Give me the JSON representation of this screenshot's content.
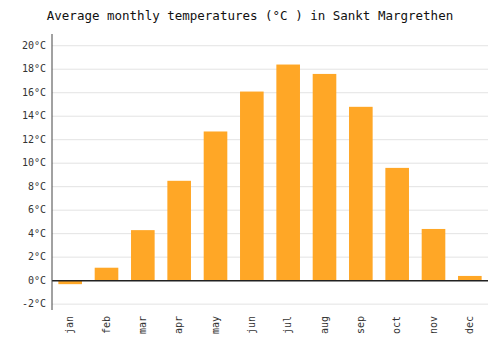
{
  "chart_data": {
    "type": "bar",
    "title": "Average monthly temperatures (°C ) in Sankt Margrethen",
    "categories": [
      "jan",
      "feb",
      "mar",
      "apr",
      "may",
      "jun",
      "jul",
      "aug",
      "sep",
      "oct",
      "nov",
      "dec"
    ],
    "values": [
      -0.3,
      1.1,
      4.3,
      8.5,
      12.7,
      16.1,
      18.4,
      17.6,
      14.8,
      9.6,
      4.4,
      0.4
    ],
    "color": "#FFA726",
    "ylim": [
      -2.5,
      21.0
    ],
    "yticks": [
      {
        "value": -2,
        "label": "-2°C"
      },
      {
        "value": 0,
        "label": "0°C"
      },
      {
        "value": 2,
        "label": "2°C"
      },
      {
        "value": 4,
        "label": "4°C"
      },
      {
        "value": 6,
        "label": "6°C"
      },
      {
        "value": 8,
        "label": "8°C"
      },
      {
        "value": 10,
        "label": "10°C"
      },
      {
        "value": 12,
        "label": "12°C"
      },
      {
        "value": 14,
        "label": "14°C"
      },
      {
        "value": 16,
        "label": "16°C"
      },
      {
        "value": 18,
        "label": "18°C"
      },
      {
        "value": 20,
        "label": "20°C"
      }
    ],
    "grid": true
  }
}
